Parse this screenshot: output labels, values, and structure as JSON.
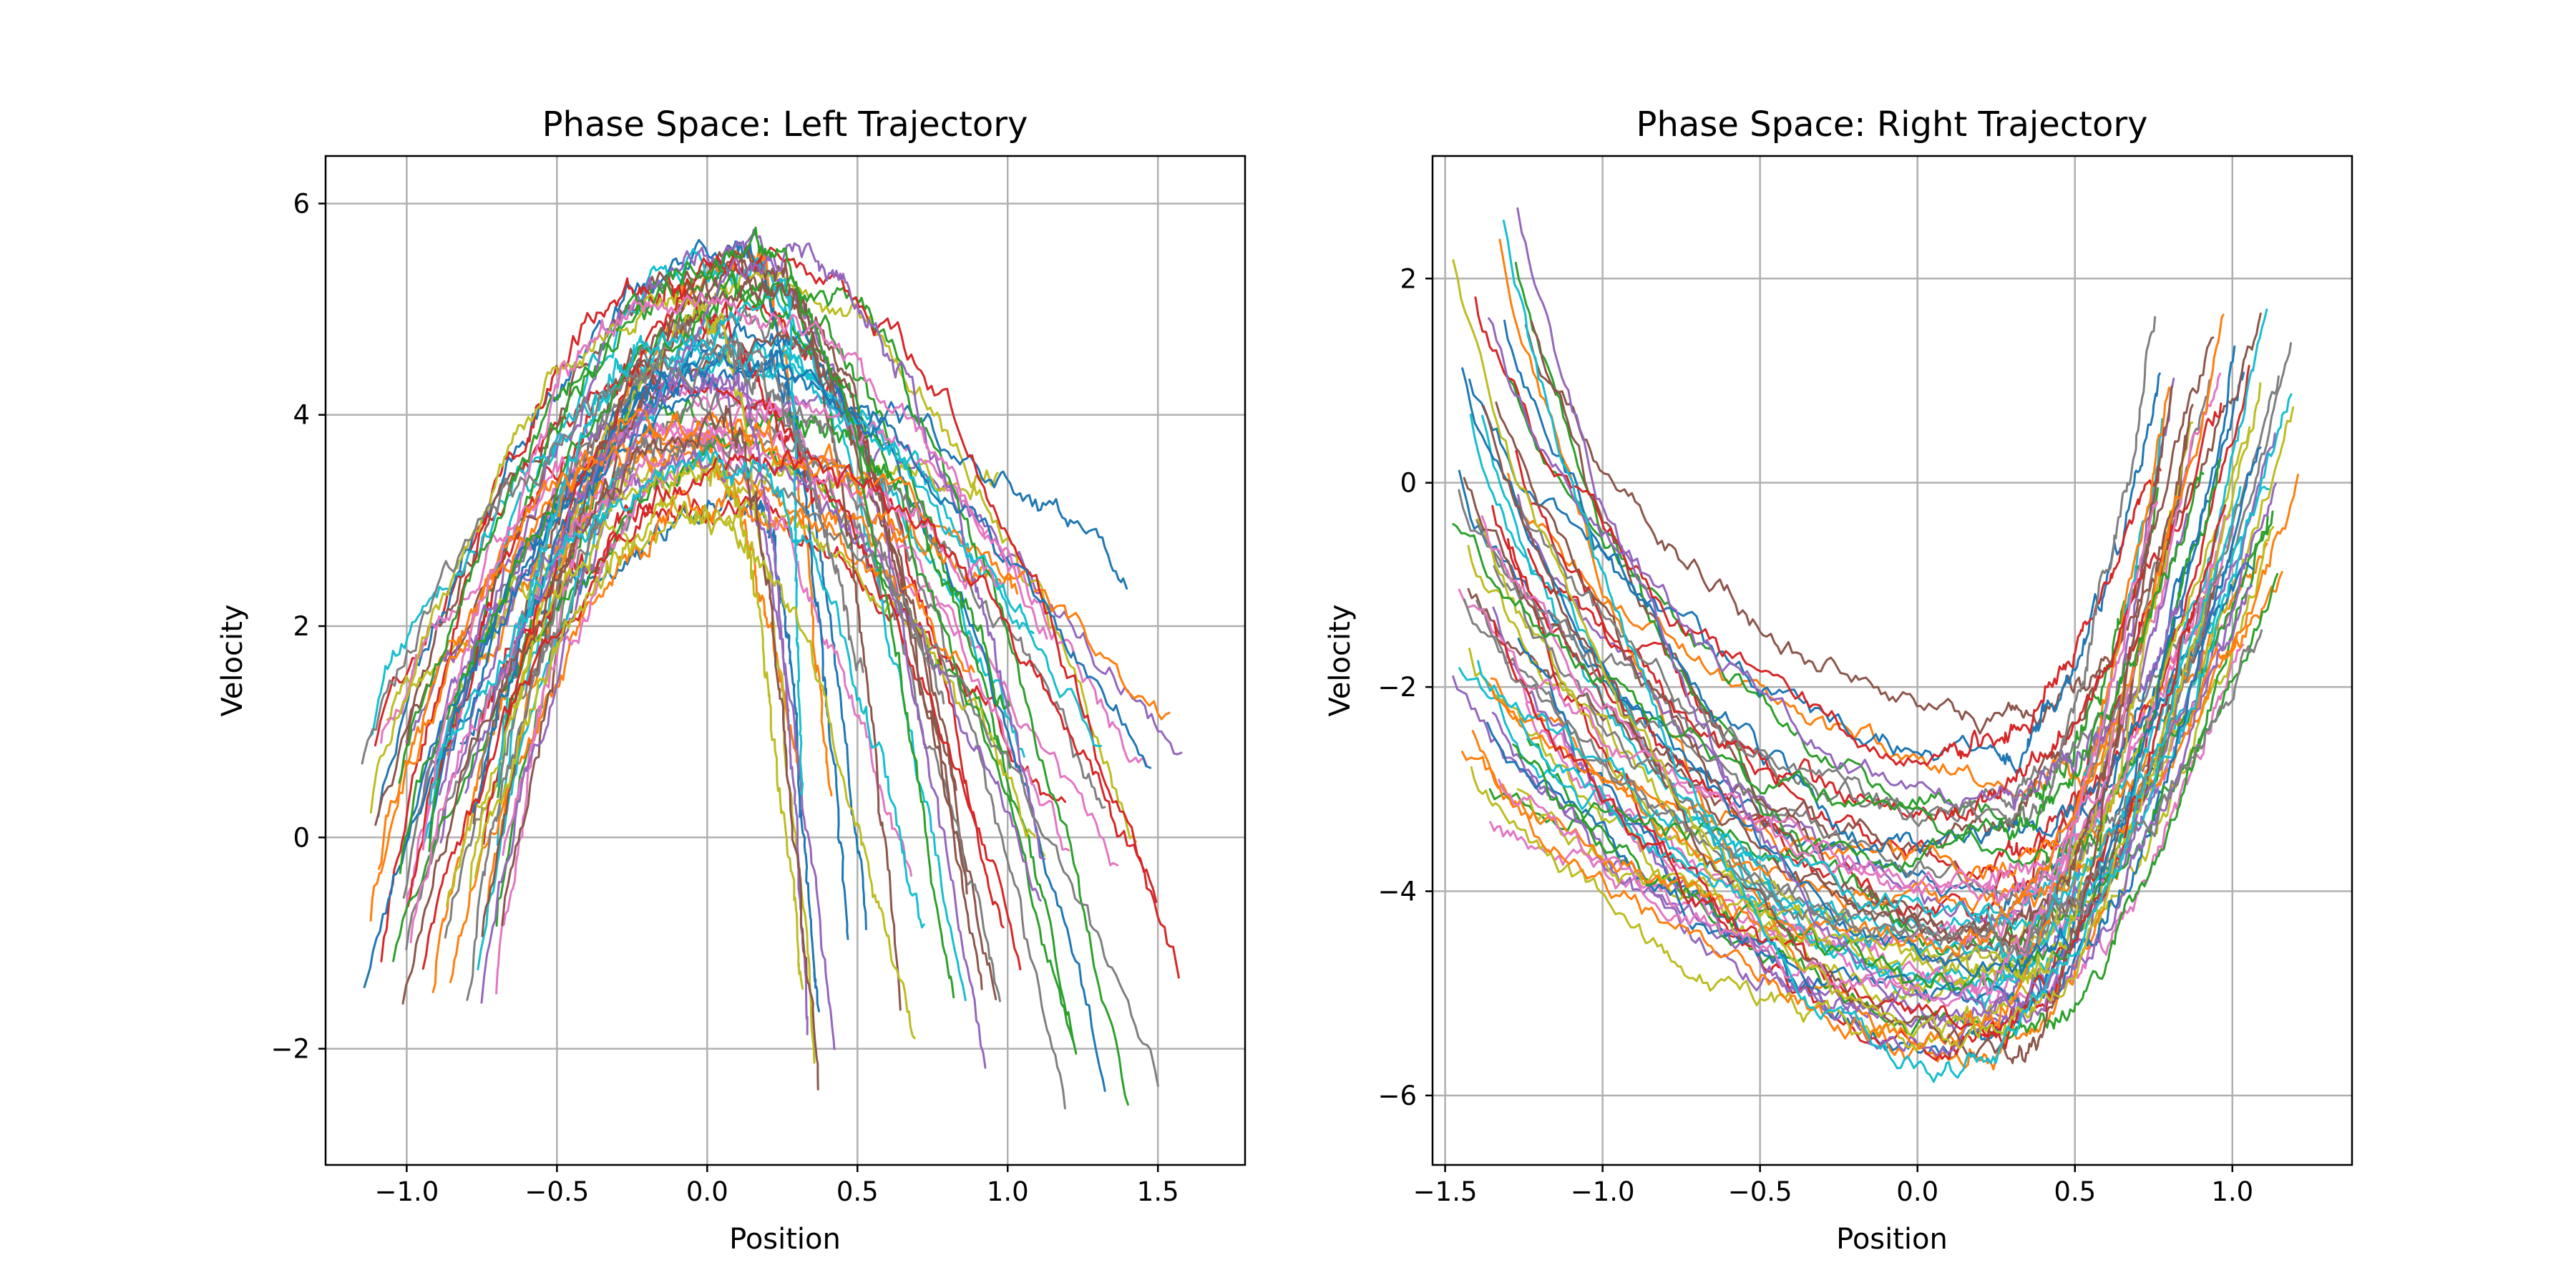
{
  "chart_data": [
    {
      "type": "line",
      "title": "Phase Space: Left Trajectory",
      "xlabel": "Position",
      "ylabel": "Velocity",
      "xlim": [
        -1.27,
        1.79
      ],
      "ylim": [
        -3.1,
        6.45
      ],
      "xticks": [
        -1.0,
        -0.5,
        0.0,
        0.5,
        1.0,
        1.5
      ],
      "xtick_labels": [
        "−1.0",
        "−0.5",
        "0.0",
        "0.5",
        "1.0",
        "1.5"
      ],
      "yticks": [
        -2,
        0,
        2,
        4,
        6
      ],
      "ytick_labels": [
        "−2",
        "0",
        "2",
        "4",
        "6"
      ],
      "grid": true,
      "legend": "none",
      "n_trajectories": 60,
      "shape": "arch",
      "start_x_range": [
        -1.15,
        -0.68
      ],
      "start_v_range": [
        -1.6,
        1.1
      ],
      "peak_x_range": [
        -0.45,
        0.4
      ],
      "peak_v_range": [
        2.8,
        5.9
      ],
      "end_x_range": [
        0.2,
        1.6
      ],
      "end_v_range": [
        -2.6,
        3.5
      ],
      "noise": 0.13
    },
    {
      "type": "line",
      "title": "Phase Space: Right Trajectory",
      "xlabel": "Position",
      "ylabel": "Velocity",
      "xlim": [
        -1.54,
        1.38
      ],
      "ylim": [
        -6.68,
        3.2
      ],
      "xticks": [
        -1.5,
        -1.0,
        -0.5,
        0.0,
        0.5,
        1.0
      ],
      "xtick_labels": [
        "−1.5",
        "−1.0",
        "−0.5",
        "0.0",
        "0.5",
        "1.0"
      ],
      "yticks": [
        -6,
        -4,
        -2,
        0,
        2
      ],
      "ytick_labels": [
        "−6",
        "−4",
        "−2",
        "0",
        "2"
      ],
      "grid": true,
      "legend": "none",
      "n_trajectories": 60,
      "shape": "bowl",
      "start_x_range": [
        -1.48,
        -1.22
      ],
      "start_v_range": [
        -3.4,
        2.7
      ],
      "valley_x_range": [
        -0.1,
        0.45
      ],
      "valley_v_range": [
        -6.1,
        -2.1
      ],
      "end_x_range": [
        0.75,
        1.22
      ],
      "end_v_range": [
        -1.5,
        1.7
      ],
      "noise": 0.12
    }
  ],
  "colors": [
    "#1f77b4",
    "#ff7f0e",
    "#2ca02c",
    "#d62728",
    "#9467bd",
    "#8c564b",
    "#e377c2",
    "#7f7f7f",
    "#bcbd22",
    "#17becf"
  ]
}
